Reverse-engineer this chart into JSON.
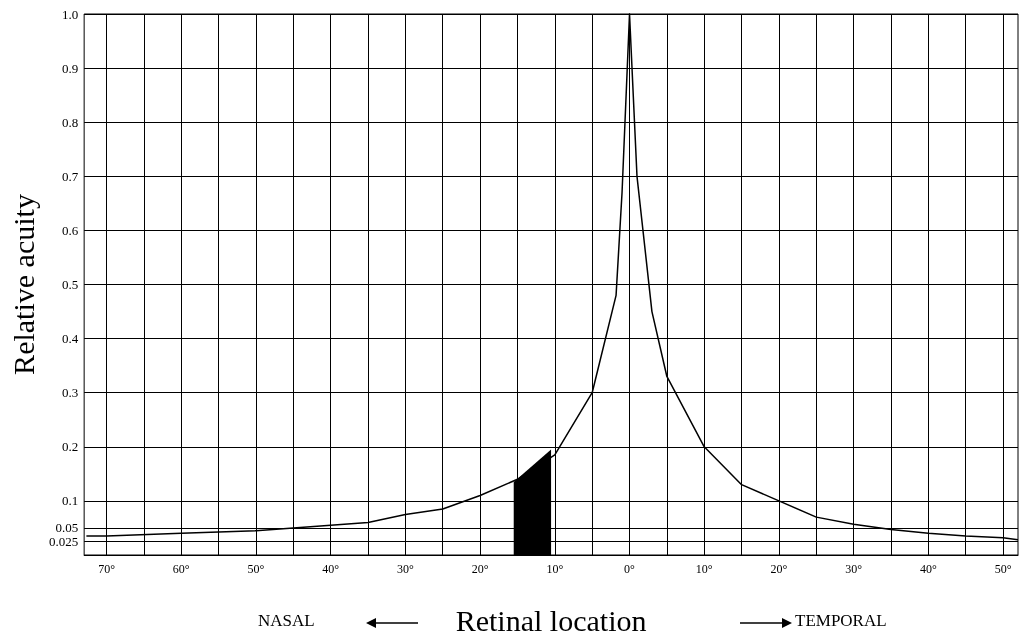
{
  "chart_data": {
    "type": "line",
    "xlabel": "Retinal location",
    "ylabel": "Relative acuity",
    "annotations": [
      "NASAL",
      "TEMPORAL"
    ],
    "series": [
      {
        "color": "#000000",
        "x": [
          -72.7,
          -70,
          -60,
          -50,
          -40,
          -35,
          -30,
          -25,
          -20,
          -15,
          -10,
          -5,
          -1.8,
          -1,
          0,
          1,
          3,
          5,
          10,
          15,
          20,
          25,
          30,
          35,
          40,
          45,
          50,
          52
        ],
        "values": [
          0.035,
          0.035,
          0.04,
          0.045,
          0.055,
          0.06,
          0.075,
          0.085,
          0.11,
          0.14,
          0.185,
          0.3,
          0.48,
          0.67,
          1.0,
          0.7,
          0.45,
          0.33,
          0.2,
          0.13,
          0.1,
          0.07,
          0.057,
          0.047,
          0.04,
          0.035,
          0.032,
          0.028
        ]
      },
      {
        "type": "area",
        "color": "#000000",
        "x": [
          -15.5,
          -10.5
        ],
        "values": [
          0.135,
          0.195
        ]
      }
    ],
    "xlim": [
      -73,
      52
    ],
    "xticks": [
      {
        "value": -70,
        "label": "70°"
      },
      {
        "value": -65,
        "label": null
      },
      {
        "value": -60,
        "label": "60°"
      },
      {
        "value": -55,
        "label": null
      },
      {
        "value": -50,
        "label": "50°"
      },
      {
        "value": -45,
        "label": null
      },
      {
        "value": -40,
        "label": "40°"
      },
      {
        "value": -35,
        "label": null
      },
      {
        "value": -30,
        "label": "30°"
      },
      {
        "value": -25,
        "label": null
      },
      {
        "value": -20,
        "label": "20°"
      },
      {
        "value": -15,
        "label": null
      },
      {
        "value": -10,
        "label": "10°"
      },
      {
        "value": -5,
        "label": null
      },
      {
        "value": 0,
        "label": "0°"
      },
      {
        "value": 5,
        "label": null
      },
      {
        "value": 10,
        "label": "10°"
      },
      {
        "value": 15,
        "label": null
      },
      {
        "value": 20,
        "label": "20°"
      },
      {
        "value": 25,
        "label": null
      },
      {
        "value": 30,
        "label": "30°"
      },
      {
        "value": 35,
        "label": null
      },
      {
        "value": 40,
        "label": "40°"
      },
      {
        "value": 45,
        "label": null
      },
      {
        "value": 50,
        "label": "50°"
      }
    ],
    "ylim": [
      0,
      1
    ],
    "yticks": [
      0.025,
      0.05,
      0.1,
      0.2,
      0.3,
      0.4,
      0.5,
      0.6,
      0.7,
      0.8,
      0.9,
      {
        "value": 1,
        "label": "1.0"
      }
    ],
    "grid": true,
    "line_style": "solid"
  }
}
